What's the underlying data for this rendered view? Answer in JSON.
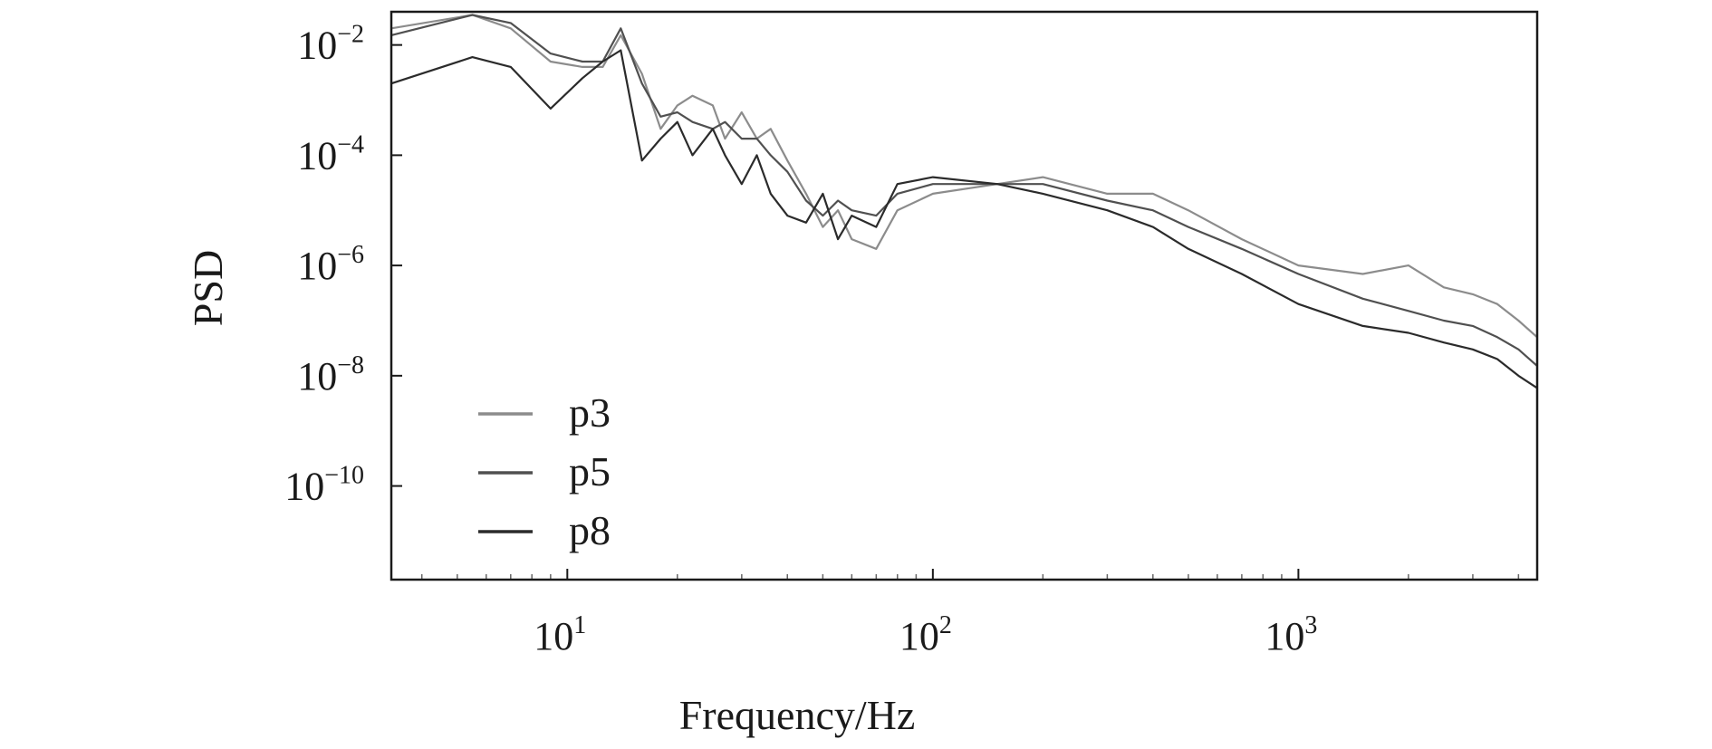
{
  "chart_data": {
    "type": "line",
    "xlabel": "Frequency/Hz",
    "ylabel": "PSD",
    "x_scale": "log",
    "y_scale": "log",
    "xlim": [
      3.3,
      4500
    ],
    "ylim": [
      2e-12,
      0.04
    ],
    "x_ticks": [
      {
        "value": 10,
        "label_base": "10",
        "label_exp": "1"
      },
      {
        "value": 100,
        "label_base": "10",
        "label_exp": "2"
      },
      {
        "value": 1000,
        "label_base": "10",
        "label_exp": "3"
      }
    ],
    "y_ticks": [
      {
        "value": 0.01,
        "label_base": "10",
        "label_exp": "−2"
      },
      {
        "value": 0.0001,
        "label_base": "10",
        "label_exp": "−4"
      },
      {
        "value": 1e-06,
        "label_base": "10",
        "label_exp": "−6"
      },
      {
        "value": 1e-08,
        "label_base": "10",
        "label_exp": "−8"
      },
      {
        "value": 1e-10,
        "label_base": "10",
        "label_exp": "−10"
      }
    ],
    "grid": false,
    "legend_position": "bottom-left",
    "series": [
      {
        "name": "p3",
        "color": "#8c8c8c",
        "x": [
          3.3,
          5.5,
          7,
          9,
          11,
          12.5,
          14,
          16,
          18,
          20,
          22,
          25,
          27,
          30,
          33,
          36,
          40,
          45,
          50,
          55,
          60,
          70,
          80,
          100,
          150,
          200,
          300,
          400,
          500,
          700,
          1000,
          1500,
          2000,
          2500,
          3000,
          3500,
          4000,
          4500
        ],
        "y": [
          0.02,
          0.035,
          0.02,
          0.005,
          0.004,
          0.004,
          0.015,
          0.003,
          0.0003,
          0.0008,
          0.0012,
          0.0008,
          0.0002,
          0.0006,
          0.0002,
          0.0003,
          8e-05,
          2e-05,
          5e-06,
          1e-05,
          3e-06,
          2e-06,
          1e-05,
          2e-05,
          3e-05,
          4e-05,
          2e-05,
          2e-05,
          1e-05,
          3e-06,
          1e-06,
          7e-07,
          1e-06,
          4e-07,
          3e-07,
          2e-07,
          1e-07,
          5e-08
        ]
      },
      {
        "name": "p5",
        "color": "#505050",
        "x": [
          3.3,
          5.5,
          7,
          9,
          11,
          12.5,
          14,
          16,
          18,
          20,
          22,
          25,
          27,
          30,
          33,
          36,
          40,
          45,
          50,
          55,
          60,
          70,
          80,
          100,
          150,
          200,
          300,
          400,
          500,
          700,
          1000,
          1500,
          2000,
          2500,
          3000,
          3500,
          4000,
          4500
        ],
        "y": [
          0.015,
          0.035,
          0.025,
          0.007,
          0.005,
          0.005,
          0.02,
          0.002,
          0.0005,
          0.0006,
          0.0004,
          0.0003,
          0.0004,
          0.0002,
          0.0002,
          0.0001,
          5e-05,
          1.5e-05,
          8e-06,
          1.5e-05,
          1e-05,
          8e-06,
          2e-05,
          3e-05,
          3e-05,
          3e-05,
          1.5e-05,
          1e-05,
          5e-06,
          2e-06,
          7e-07,
          2.5e-07,
          1.5e-07,
          1e-07,
          8e-08,
          5e-08,
          3e-08,
          1.5e-08
        ]
      },
      {
        "name": "p8",
        "color": "#2b2b2b",
        "x": [
          3.3,
          5.5,
          7,
          9,
          11,
          12.5,
          14,
          16,
          18,
          20,
          22,
          25,
          27,
          30,
          33,
          36,
          40,
          45,
          50,
          55,
          60,
          70,
          80,
          100,
          150,
          200,
          300,
          400,
          500,
          700,
          1000,
          1500,
          2000,
          2500,
          3000,
          3500,
          4000,
          4500
        ],
        "y": [
          0.002,
          0.006,
          0.004,
          0.0007,
          0.0025,
          0.005,
          0.008,
          8e-05,
          0.0002,
          0.0004,
          0.0001,
          0.0003,
          0.0001,
          3e-05,
          0.0001,
          2e-05,
          8e-06,
          6e-06,
          2e-05,
          3e-06,
          8e-06,
          5e-06,
          3e-05,
          4e-05,
          3e-05,
          2e-05,
          1e-05,
          5e-06,
          2e-06,
          7e-07,
          2e-07,
          8e-08,
          6e-08,
          4e-08,
          3e-08,
          2e-08,
          1e-08,
          6e-09
        ]
      }
    ]
  }
}
